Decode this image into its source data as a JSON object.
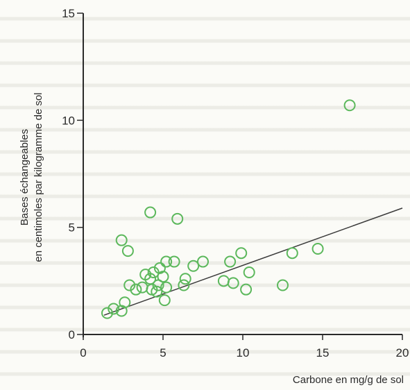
{
  "chart_data": {
    "type": "scatter",
    "title": "",
    "xlabel": "Carbone en mg/g de sol",
    "ylabel_line1": "Bases échangeables",
    "ylabel_line2": "en centimoles par kilogramme de sol",
    "xlim": [
      0,
      20
    ],
    "ylim": [
      0,
      15
    ],
    "xticks": [
      "0",
      "5",
      "10",
      "15",
      "20"
    ],
    "yticks": [
      "0",
      "5",
      "10",
      "15"
    ],
    "grid": false,
    "colors": {
      "points": "#5cb85c",
      "trendline": "#3a3a3a",
      "axis": "#2a2a2a"
    },
    "trendline": {
      "x": [
        1.3,
        20.0
      ],
      "y": [
        0.9,
        5.9
      ]
    },
    "points": [
      {
        "x": 1.5,
        "y": 1.0
      },
      {
        "x": 1.9,
        "y": 1.2
      },
      {
        "x": 2.4,
        "y": 1.1
      },
      {
        "x": 2.6,
        "y": 1.5
      },
      {
        "x": 2.4,
        "y": 4.4
      },
      {
        "x": 2.8,
        "y": 3.9
      },
      {
        "x": 2.9,
        "y": 2.3
      },
      {
        "x": 3.3,
        "y": 2.1
      },
      {
        "x": 3.7,
        "y": 2.2
      },
      {
        "x": 3.9,
        "y": 2.8
      },
      {
        "x": 4.2,
        "y": 2.6
      },
      {
        "x": 4.3,
        "y": 2.1
      },
      {
        "x": 4.4,
        "y": 2.9
      },
      {
        "x": 4.6,
        "y": 2.0
      },
      {
        "x": 4.7,
        "y": 2.3
      },
      {
        "x": 4.8,
        "y": 3.1
      },
      {
        "x": 5.0,
        "y": 2.7
      },
      {
        "x": 5.1,
        "y": 1.6
      },
      {
        "x": 5.2,
        "y": 2.2
      },
      {
        "x": 5.2,
        "y": 3.4
      },
      {
        "x": 5.7,
        "y": 3.4
      },
      {
        "x": 4.2,
        "y": 5.7
      },
      {
        "x": 5.9,
        "y": 5.4
      },
      {
        "x": 6.3,
        "y": 2.3
      },
      {
        "x": 6.4,
        "y": 2.6
      },
      {
        "x": 6.9,
        "y": 3.2
      },
      {
        "x": 7.5,
        "y": 3.4
      },
      {
        "x": 8.8,
        "y": 2.5
      },
      {
        "x": 9.2,
        "y": 3.4
      },
      {
        "x": 9.4,
        "y": 2.4
      },
      {
        "x": 9.9,
        "y": 3.8
      },
      {
        "x": 10.2,
        "y": 2.1
      },
      {
        "x": 10.4,
        "y": 2.9
      },
      {
        "x": 12.5,
        "y": 2.3
      },
      {
        "x": 13.1,
        "y": 3.8
      },
      {
        "x": 14.7,
        "y": 4.0
      },
      {
        "x": 16.7,
        "y": 10.7
      }
    ]
  }
}
